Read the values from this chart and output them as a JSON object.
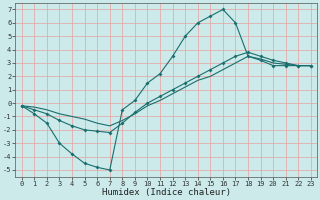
{
  "xlabel": "Humidex (Indice chaleur)",
  "xlim": [
    -0.5,
    23.5
  ],
  "ylim": [
    -5.5,
    7.5
  ],
  "xticks": [
    0,
    1,
    2,
    3,
    4,
    5,
    6,
    7,
    8,
    9,
    10,
    11,
    12,
    13,
    14,
    15,
    16,
    17,
    18,
    19,
    20,
    21,
    22,
    23
  ],
  "yticks": [
    -5,
    -4,
    -3,
    -2,
    -1,
    0,
    1,
    2,
    3,
    4,
    5,
    6,
    7
  ],
  "bg_color": "#cceaea",
  "grid_color": "#e8a0a0",
  "line_color": "#1a6e6e",
  "line1_x": [
    0,
    1,
    2,
    3,
    4,
    5,
    6,
    7,
    8,
    9,
    10,
    11,
    12,
    13,
    14,
    15,
    16,
    17,
    18,
    19,
    20,
    21,
    22,
    23
  ],
  "line1_y": [
    -0.2,
    -0.8,
    -1.5,
    -3.0,
    -3.8,
    -4.5,
    -4.8,
    -5.0,
    -0.5,
    0.2,
    1.5,
    2.2,
    3.5,
    5.0,
    6.0,
    6.5,
    7.0,
    6.0,
    3.5,
    3.2,
    2.8,
    2.8,
    2.8,
    2.8
  ],
  "line2_x": [
    0,
    1,
    2,
    3,
    4,
    5,
    6,
    7,
    8,
    9,
    10,
    11,
    12,
    13,
    14,
    15,
    16,
    17,
    18,
    19,
    20,
    21,
    22,
    23
  ],
  "line2_y": [
    -0.2,
    -0.5,
    -0.8,
    -1.3,
    -1.7,
    -2.0,
    -2.1,
    -2.2,
    -1.5,
    -0.7,
    0.0,
    0.5,
    1.0,
    1.5,
    2.0,
    2.5,
    3.0,
    3.5,
    3.8,
    3.5,
    3.2,
    3.0,
    2.8,
    2.8
  ],
  "line3_x": [
    0,
    1,
    2,
    3,
    4,
    5,
    6,
    7,
    8,
    9,
    10,
    11,
    12,
    13,
    14,
    15,
    16,
    17,
    18,
    19,
    20,
    21,
    22,
    23
  ],
  "line3_y": [
    -0.2,
    -0.3,
    -0.5,
    -0.8,
    -1.0,
    -1.2,
    -1.5,
    -1.7,
    -1.3,
    -0.8,
    -0.2,
    0.2,
    0.7,
    1.2,
    1.7,
    2.0,
    2.5,
    3.0,
    3.5,
    3.3,
    3.0,
    2.9,
    2.8,
    2.8
  ],
  "line1_markers": [
    0,
    1,
    2,
    3,
    4,
    5,
    6,
    7,
    8,
    9,
    10,
    11,
    12,
    13,
    14,
    15,
    16,
    17,
    18,
    19,
    20,
    21,
    22,
    23
  ],
  "line2_markers": [
    0,
    2,
    3,
    4,
    5,
    6,
    7,
    8,
    9,
    10,
    11,
    12,
    13,
    14,
    15,
    16,
    17,
    18,
    20,
    21,
    22,
    23
  ],
  "tick_fontsize": 5.0,
  "xlabel_fontsize": 6.5
}
